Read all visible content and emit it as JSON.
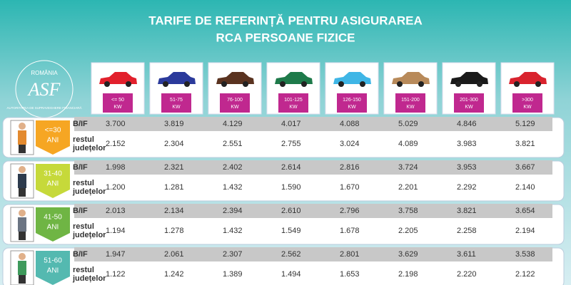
{
  "header": {
    "title": [
      "TARIFE DE REFERINȚĂ PENTRU ASIGURAREA",
      "RCA PERSOANE FIZICE"
    ]
  },
  "logo": {
    "country": "ROMÂNIA",
    "initials": "ASF",
    "name": "AUTORITATEA DE SUPRAVEGHERE FINANCIARĂ"
  },
  "columns": [
    {
      "label": "<= 50",
      "unit": "KW"
    },
    {
      "label": "51-75",
      "unit": "KW"
    },
    {
      "label": "76-100",
      "unit": "KW"
    },
    {
      "label": "101-125",
      "unit": "KW"
    },
    {
      "label": "126-150",
      "unit": "KW"
    },
    {
      "label": "151-200",
      "unit": "KW"
    },
    {
      "label": "201-300",
      "unit": "KW"
    },
    {
      "label": ">300",
      "unit": "KW"
    }
  ],
  "groups": [
    {
      "age": "<=30",
      "unit": "ANI",
      "rows": [
        {
          "label": [
            "B/IF"
          ],
          "values": [
            "3.700",
            "3.819",
            "4.129",
            "4.017",
            "4.088",
            "5.029",
            "4.846",
            "5.129"
          ]
        },
        {
          "label": [
            "restul",
            "județelor"
          ],
          "values": [
            "2.152",
            "2.304",
            "2.551",
            "2.755",
            "3.024",
            "4.089",
            "3.983",
            "3.821"
          ]
        }
      ]
    },
    {
      "age": "31-40",
      "unit": "ANI",
      "rows": [
        {
          "label": [
            "B/IF"
          ],
          "values": [
            "1.998",
            "2.321",
            "2.402",
            "2.614",
            "2.816",
            "3.724",
            "3.953",
            "3.667"
          ]
        },
        {
          "label": [
            "restul",
            "județelor"
          ],
          "values": [
            "1.200",
            "1.281",
            "1.432",
            "1.590",
            "1.670",
            "2.201",
            "2.292",
            "2.140"
          ]
        }
      ]
    },
    {
      "age": "41-50",
      "unit": "ANI",
      "rows": [
        {
          "label": [
            "B/IF"
          ],
          "values": [
            "2.013",
            "2.134",
            "2.394",
            "2.610",
            "2.796",
            "3.758",
            "3.821",
            "3.654"
          ]
        },
        {
          "label": [
            "restul",
            "județelor"
          ],
          "values": [
            "1.194",
            "1.278",
            "1.432",
            "1.549",
            "1.678",
            "2.205",
            "2.258",
            "2.194"
          ]
        }
      ]
    },
    {
      "age": "51-60",
      "unit": "ANI",
      "rows": [
        {
          "label": [
            "B/IF"
          ],
          "values": [
            "1.947",
            "2.061",
            "2.307",
            "2.562",
            "2.801",
            "3.629",
            "3.611",
            "3.538"
          ]
        },
        {
          "label": [
            "restul",
            "județelor"
          ],
          "values": [
            "1.122",
            "1.242",
            "1.389",
            "1.494",
            "1.653",
            "2.198",
            "2.220",
            "2.122"
          ]
        }
      ]
    }
  ]
}
